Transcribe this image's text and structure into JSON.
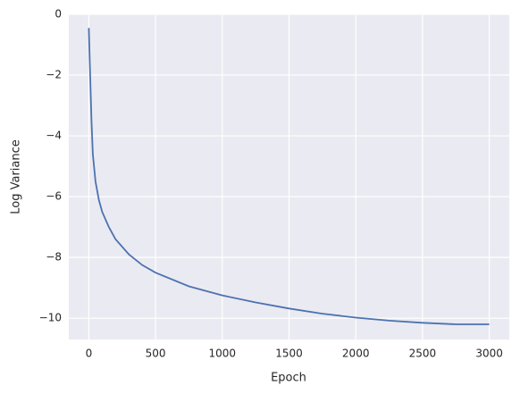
{
  "chart_data": {
    "type": "line",
    "x_label": "Epoch",
    "y_label": "Log Variance",
    "x": [
      0,
      10,
      20,
      30,
      50,
      75,
      100,
      150,
      200,
      300,
      400,
      500,
      750,
      1000,
      1250,
      1500,
      1750,
      2000,
      2250,
      2500,
      2750,
      3000
    ],
    "series": [
      {
        "name": "Log Variance",
        "color": "#4c72b0",
        "values": [
          -0.45,
          -2.0,
          -3.5,
          -4.6,
          -5.5,
          -6.1,
          -6.5,
          -7.0,
          -7.4,
          -7.9,
          -8.25,
          -8.5,
          -8.95,
          -9.25,
          -9.48,
          -9.68,
          -9.85,
          -9.98,
          -10.08,
          -10.15,
          -10.2,
          -10.2
        ]
      }
    ],
    "xlim": [
      -150,
      3150
    ],
    "ylim": [
      -10.7,
      0.0
    ],
    "xticks": [
      0,
      500,
      1000,
      1500,
      2000,
      2500,
      3000
    ],
    "yticks": [
      {
        "value": 0,
        "label": "0"
      },
      {
        "value": -2,
        "label": "−2"
      },
      {
        "value": -4,
        "label": "−4"
      },
      {
        "value": -6,
        "label": "−6"
      },
      {
        "value": -8,
        "label": "−8"
      },
      {
        "value": -10,
        "label": "−10"
      }
    ],
    "grid": true
  }
}
